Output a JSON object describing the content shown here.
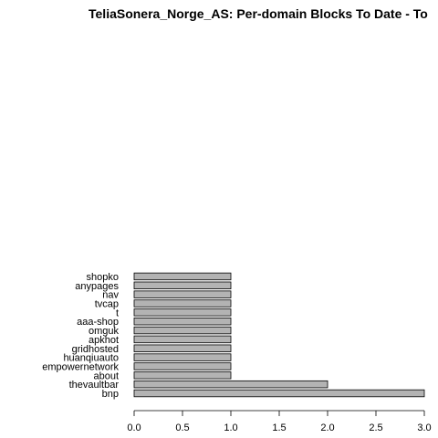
{
  "chart_data": {
    "type": "bar",
    "orientation": "horizontal",
    "title": "TeliaSonera_Norge_AS: Per-domain Blocks To Date - To",
    "xlabel": "",
    "ylabel": "",
    "categories": [
      "bnp",
      "thevaultbar",
      "about",
      "empowernetwork",
      "huanqiuauto",
      "gridhosted",
      "apkhot",
      "omguk",
      "aaa-shop",
      "t",
      "tvcap",
      "nav",
      "anypages",
      "shopko"
    ],
    "values": [
      3,
      2,
      1,
      1,
      1,
      1,
      1,
      1,
      1,
      1,
      1,
      1,
      1,
      1
    ],
    "xlim": [
      0,
      3
    ],
    "x_ticks": [
      "0.0",
      "0.5",
      "1.0",
      "1.5",
      "2.0",
      "2.5",
      "3.0"
    ],
    "bar_color": "#b3b3b3",
    "bar_border_color": "#000000",
    "grid": false,
    "legend": "none"
  }
}
